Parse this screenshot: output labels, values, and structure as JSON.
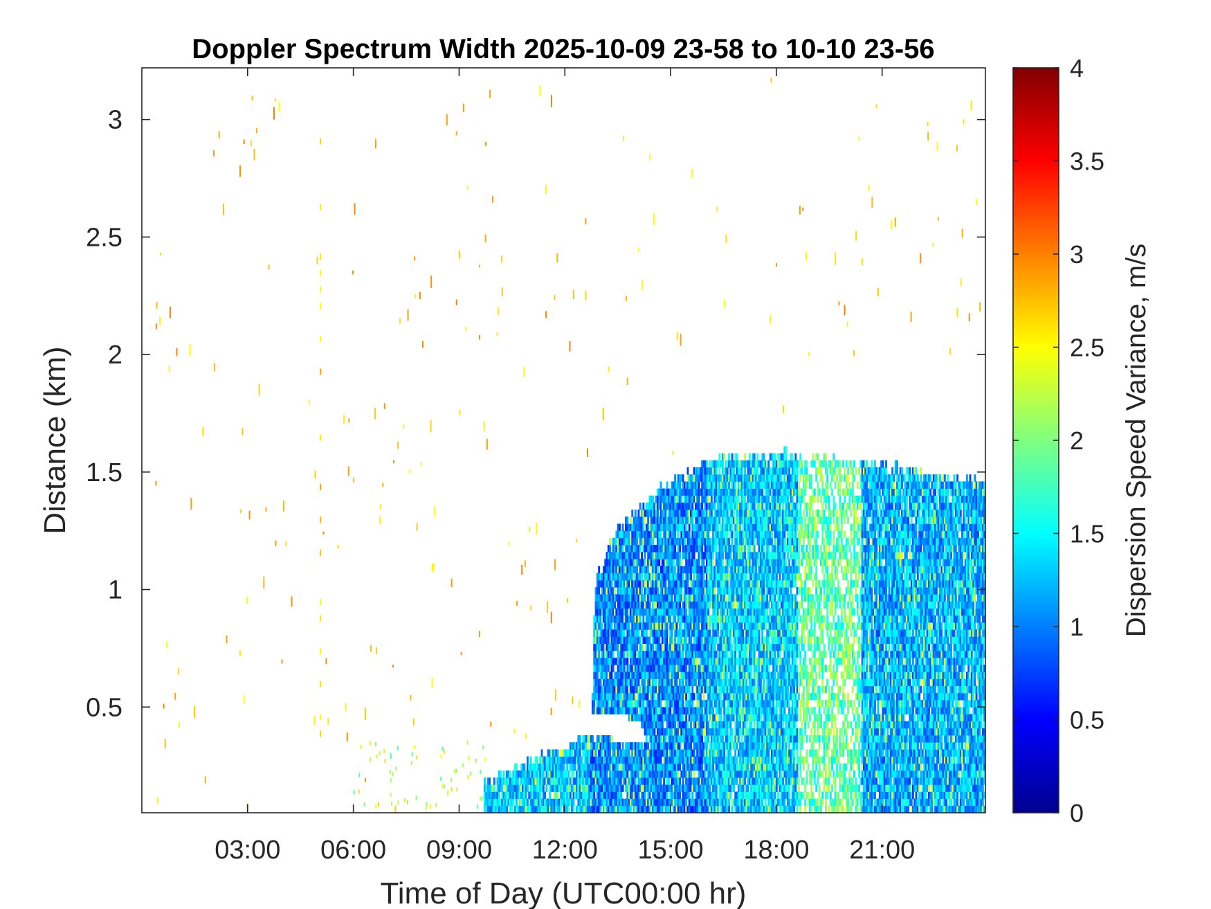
{
  "chart_data": {
    "type": "heatmap",
    "title": "Doppler Spectrum Width 2025-10-09 23-58 to 10-10 23-56",
    "xlabel": "Time of Day (UTC00:00 hr)",
    "ylabel": "Distance (km)",
    "colorbar_label": "Dispersion Speed Variance, m/s",
    "x_unit": "hours of day (UTC)",
    "xlim": [
      0.0,
      23.93
    ],
    "ylim": [
      0.05,
      3.22
    ],
    "x_ticks": [
      3,
      6,
      9,
      12,
      15,
      18,
      21
    ],
    "x_tick_labels": [
      "03:00",
      "06:00",
      "09:00",
      "12:00",
      "15:00",
      "18:00",
      "21:00"
    ],
    "y_ticks": [
      0.5,
      1,
      1.5,
      2,
      2.5,
      3
    ],
    "y_tick_labels": [
      "0.5",
      "1",
      "1.5",
      "2",
      "2.5",
      "3"
    ],
    "colorbar": {
      "colormap": "jet",
      "clim": [
        0,
        4
      ],
      "ticks": [
        0,
        0.5,
        1,
        1.5,
        2,
        2.5,
        3,
        3.5,
        4
      ],
      "tick_labels": [
        "0",
        "0.5",
        "1",
        "1.5",
        "2",
        "2.5",
        "3",
        "3.5",
        "4"
      ]
    },
    "grid": false,
    "echo_region": {
      "description_values": "dense returns, spectrum width mostly 1-1.8 m/s",
      "top_height_km": [
        [
          9.7,
          0.17
        ],
        [
          10.5,
          0.22
        ],
        [
          11.3,
          0.28
        ],
        [
          12.0,
          0.32
        ],
        [
          12.6,
          0.38
        ],
        [
          12.8,
          0.55
        ],
        [
          12.7,
          0.8
        ],
        [
          12.9,
          1.05
        ],
        [
          13.4,
          1.22
        ],
        [
          14.0,
          1.32
        ],
        [
          14.8,
          1.42
        ],
        [
          15.6,
          1.5
        ],
        [
          16.4,
          1.55
        ],
        [
          17.5,
          1.56
        ],
        [
          18.5,
          1.56
        ],
        [
          19.5,
          1.55
        ],
        [
          20.5,
          1.52
        ],
        [
          21.5,
          1.5
        ],
        [
          22.5,
          1.46
        ],
        [
          23.93,
          1.45
        ]
      ],
      "inner_bulge_km": [
        [
          12.6,
          0.45
        ],
        [
          13.3,
          0.47
        ],
        [
          14.1,
          0.42
        ],
        [
          14.6,
          0.3
        ],
        [
          15.2,
          0.17
        ]
      ],
      "clear_band_hours": [
        18.6,
        20.4
      ],
      "value_bands": [
        {
          "from_hour": 12.7,
          "to_hour": 16.0,
          "typical_value": 1.05
        },
        {
          "from_hour": 16.0,
          "to_hour": 18.6,
          "typical_value": 1.3
        },
        {
          "from_hour": 18.6,
          "to_hour": 20.4,
          "typical_value": 1.6
        },
        {
          "from_hour": 20.4,
          "to_hour": 23.93,
          "typical_value": 1.2
        }
      ]
    },
    "scatter_returns_value_range": [
      2.4,
      3.0
    ]
  }
}
